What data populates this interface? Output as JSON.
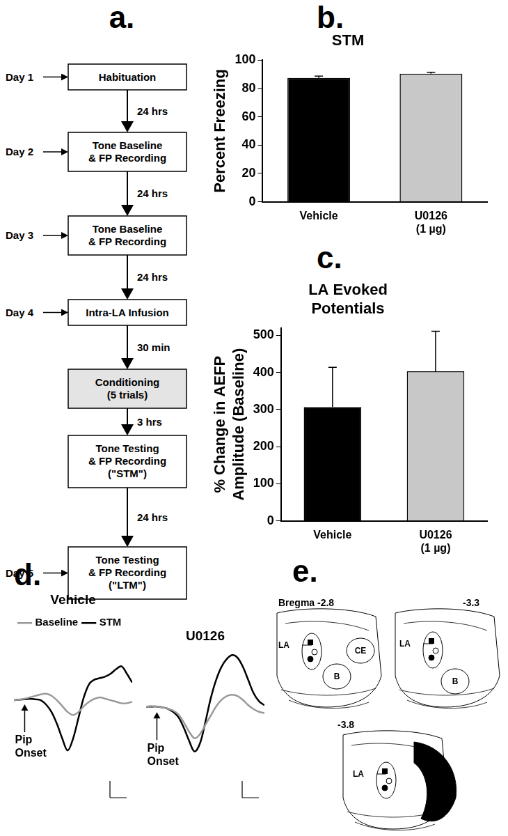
{
  "flowchart": {
    "panel": "a.",
    "steps": [
      {
        "day": "Day 1",
        "label": "Habituation"
      },
      {
        "day": "Day 2",
        "label": "Tone Baseline\n& FP Recording"
      },
      {
        "day": "Day 3",
        "label": "Tone Baseline\n& FP Recording"
      },
      {
        "day": "Day 4",
        "label": "Intra-LA Infusion"
      },
      {
        "label": "Conditioning\n(5 trials)",
        "shaded": true
      },
      {
        "label": "Tone Testing\n& FP Recording\n(\"STM\")"
      },
      {
        "day": "Day 5",
        "label": "Tone Testing\n& FP Recording\n(\"LTM\")"
      }
    ],
    "intervals": [
      "24 hrs",
      "24 hrs",
      "24 hrs",
      "30 min",
      "3 hrs",
      "24 hrs"
    ]
  },
  "chart_data": [
    {
      "panel": "b.",
      "type": "bar",
      "title": "STM",
      "y_label": "Percent Freezing",
      "categories": [
        "Vehicle",
        "U0126\n(1 µg)"
      ],
      "values": [
        87.5,
        90.5
      ],
      "errors": [
        1.2,
        1.0
      ],
      "colors": [
        "#000000",
        "#c8c8c8"
      ],
      "ylim": [
        0,
        100
      ],
      "yticks": [
        0,
        20,
        40,
        60,
        80,
        100
      ],
      "grid": false
    },
    {
      "panel": "c.",
      "type": "bar",
      "title": "LA Evoked\nPotentials",
      "y_label": "% Change in AEFP\nAmplitude (Baseline)",
      "categories": [
        "Vehicle",
        "U0126\n(1 µg)"
      ],
      "values": [
        307,
        403
      ],
      "errors": [
        107,
        108
      ],
      "colors": [
        "#000000",
        "#c8c8c8"
      ],
      "ylim": [
        0,
        520
      ],
      "yticks": [
        0,
        100,
        200,
        300,
        400,
        500
      ],
      "grid": false
    },
    {
      "panel": "d.",
      "type": "line",
      "title": "Vehicle",
      "tick_labels": false,
      "legend": "top left",
      "x": [
        0,
        1,
        2,
        3,
        4,
        5,
        6,
        7,
        8,
        9,
        10,
        11,
        12,
        13,
        14,
        15,
        16,
        17,
        18,
        19,
        20,
        21,
        22
      ],
      "xlim": [
        0,
        22
      ],
      "ylim": [
        -2,
        2.2
      ],
      "series": [
        {
          "name": "Baseline",
          "color": "#999999",
          "values": [
            0,
            0.02,
            0.05,
            0.1,
            0.15,
            0.2,
            0.22,
            0.15,
            0,
            -0.2,
            -0.4,
            -0.5,
            -0.4,
            -0.2,
            -0.05,
            0.05,
            0.1,
            0.05,
            0,
            -0.05,
            -0.1,
            -0.1,
            -0.05
          ]
        },
        {
          "name": "STM",
          "color": "#000000",
          "values": [
            0,
            0.02,
            0.03,
            0.05,
            0.03,
            0,
            -0.15,
            -0.4,
            -0.8,
            -1.3,
            -1.7,
            -1.3,
            -0.6,
            0.1,
            0.55,
            0.7,
            0.75,
            0.8,
            0.9,
            1.05,
            1.15,
            0.9,
            0.6
          ]
        }
      ],
      "annotations": [
        {
          "text": "Pip\nOnset",
          "x": 2
        }
      ]
    },
    {
      "type": "line",
      "title": "U0126",
      "tick_labels": false,
      "x": [
        0,
        1,
        2,
        3,
        4,
        5,
        6,
        7,
        8,
        9,
        10,
        11,
        12,
        13,
        14,
        15,
        16,
        17,
        18,
        19,
        20,
        21,
        22
      ],
      "xlim": [
        0,
        22
      ],
      "ylim": [
        -2,
        2.2
      ],
      "series": [
        {
          "name": "Baseline",
          "color": "#999999",
          "values": [
            0,
            0.02,
            0,
            -0.03,
            -0.08,
            -0.15,
            -0.3,
            -0.6,
            -0.95,
            -1.2,
            -1.05,
            -0.7,
            -0.35,
            0,
            0.25,
            0.4,
            0.45,
            0.4,
            0.25,
            0.05,
            -0.1,
            -0.2,
            -0.25
          ]
        },
        {
          "name": "STM",
          "color": "#000000",
          "values": [
            0,
            0,
            0,
            -0.03,
            -0.08,
            -0.2,
            -0.4,
            -0.8,
            -1.3,
            -1.7,
            -1.4,
            -0.6,
            0.3,
            1.0,
            1.5,
            1.8,
            1.95,
            1.85,
            1.5,
            1.0,
            0.5,
            0.2,
            0.05
          ]
        }
      ],
      "annotations": [
        {
          "text": "Pip\nOnset",
          "x": 2
        }
      ]
    }
  ],
  "atlas": {
    "panel": "e.",
    "sections": [
      {
        "label": "Bregma -2.8",
        "regions": [
          "LA",
          "CE",
          "B"
        ]
      },
      {
        "label": "-3.3",
        "regions": [
          "LA",
          "B"
        ]
      },
      {
        "label": "-3.8",
        "regions": [
          "LA"
        ]
      }
    ]
  }
}
